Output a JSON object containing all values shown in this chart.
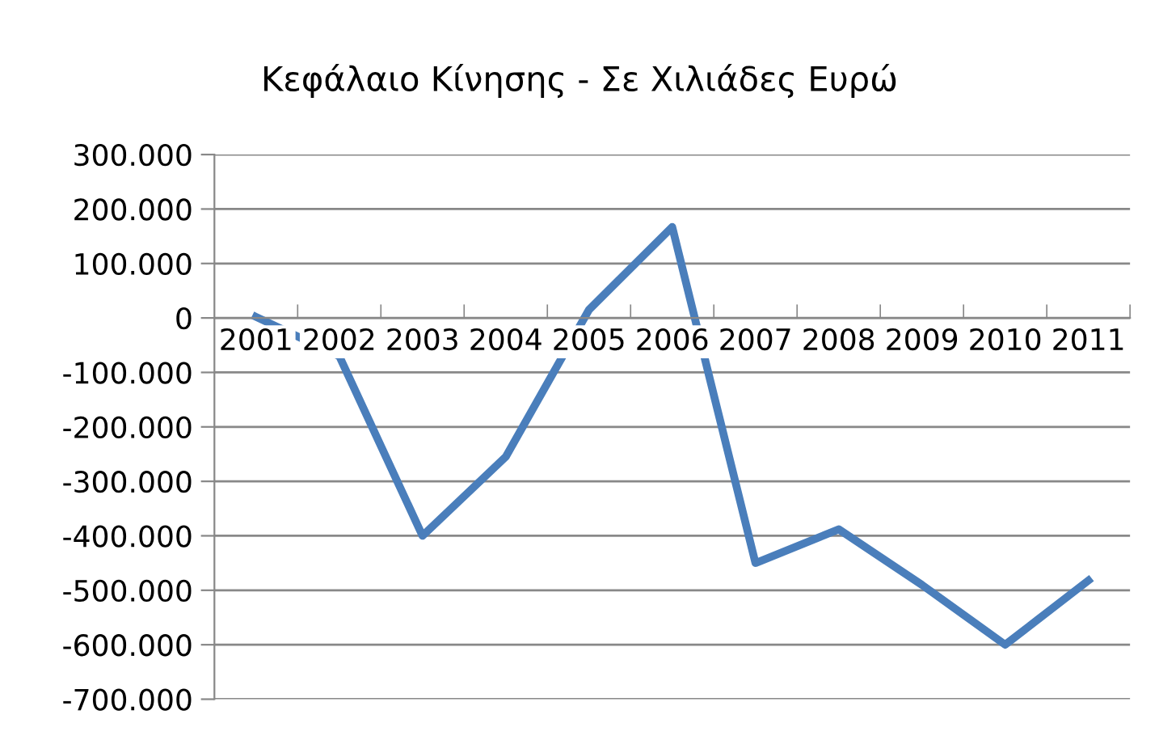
{
  "chart_data": {
    "type": "line",
    "title": "Κεφάλαιο Κίνησης - Σε Χιλιάδες Ευρώ",
    "categories": [
      "2001",
      "2002",
      "2003",
      "2004",
      "2005",
      "2006",
      "2007",
      "2008",
      "2009",
      "2010",
      "2011"
    ],
    "series": [
      {
        "color": "#4a7ebb",
        "values": [
          2000,
          -70000,
          -400000,
          -255000,
          15000,
          167000,
          -450000,
          -388000,
          -490000,
          -600000,
          -482000
        ]
      }
    ],
    "ylim": [
      -700000,
      300000
    ],
    "yticks": [
      {
        "value": 300000,
        "label": "300.000"
      },
      {
        "value": 200000,
        "label": "200.000"
      },
      {
        "value": 100000,
        "label": "100.000"
      },
      {
        "value": 0,
        "label": "0"
      },
      {
        "value": -100000,
        "label": "-100.000"
      },
      {
        "value": -200000,
        "label": "-200.000"
      },
      {
        "value": -300000,
        "label": "-300.000"
      },
      {
        "value": -400000,
        "label": "-400.000"
      },
      {
        "value": -500000,
        "label": "-500.000"
      },
      {
        "value": -600000,
        "label": "-600.000"
      },
      {
        "value": -700000,
        "label": "-700.000"
      }
    ],
    "grid": "y",
    "marker": "none",
    "line_style": "solid"
  }
}
